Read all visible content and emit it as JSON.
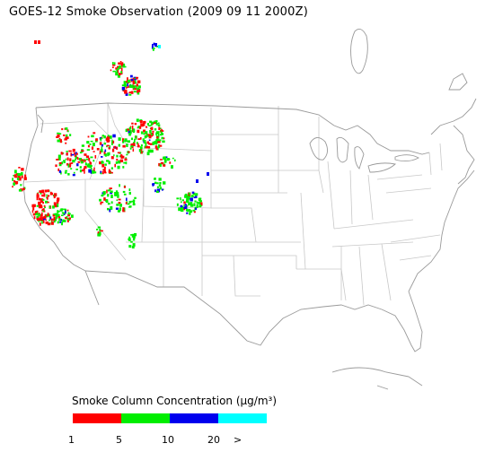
{
  "title": "GOES-12 Smoke Observation (2009 09 11  2000Z)",
  "legend": {
    "title": "Smoke Column Concentration (μg/m³)",
    "bins": [
      {
        "label": "1",
        "color": "#ff0000"
      },
      {
        "label": "5",
        "color": "#00ee00"
      },
      {
        "label": "10",
        "color": "#0000ee"
      },
      {
        "label": "20",
        "color": "#00ffff"
      }
    ],
    "overflow_label": ">"
  },
  "colors": {
    "coast": "#9a9a9a",
    "state_border": "#c8c8c8"
  }
}
